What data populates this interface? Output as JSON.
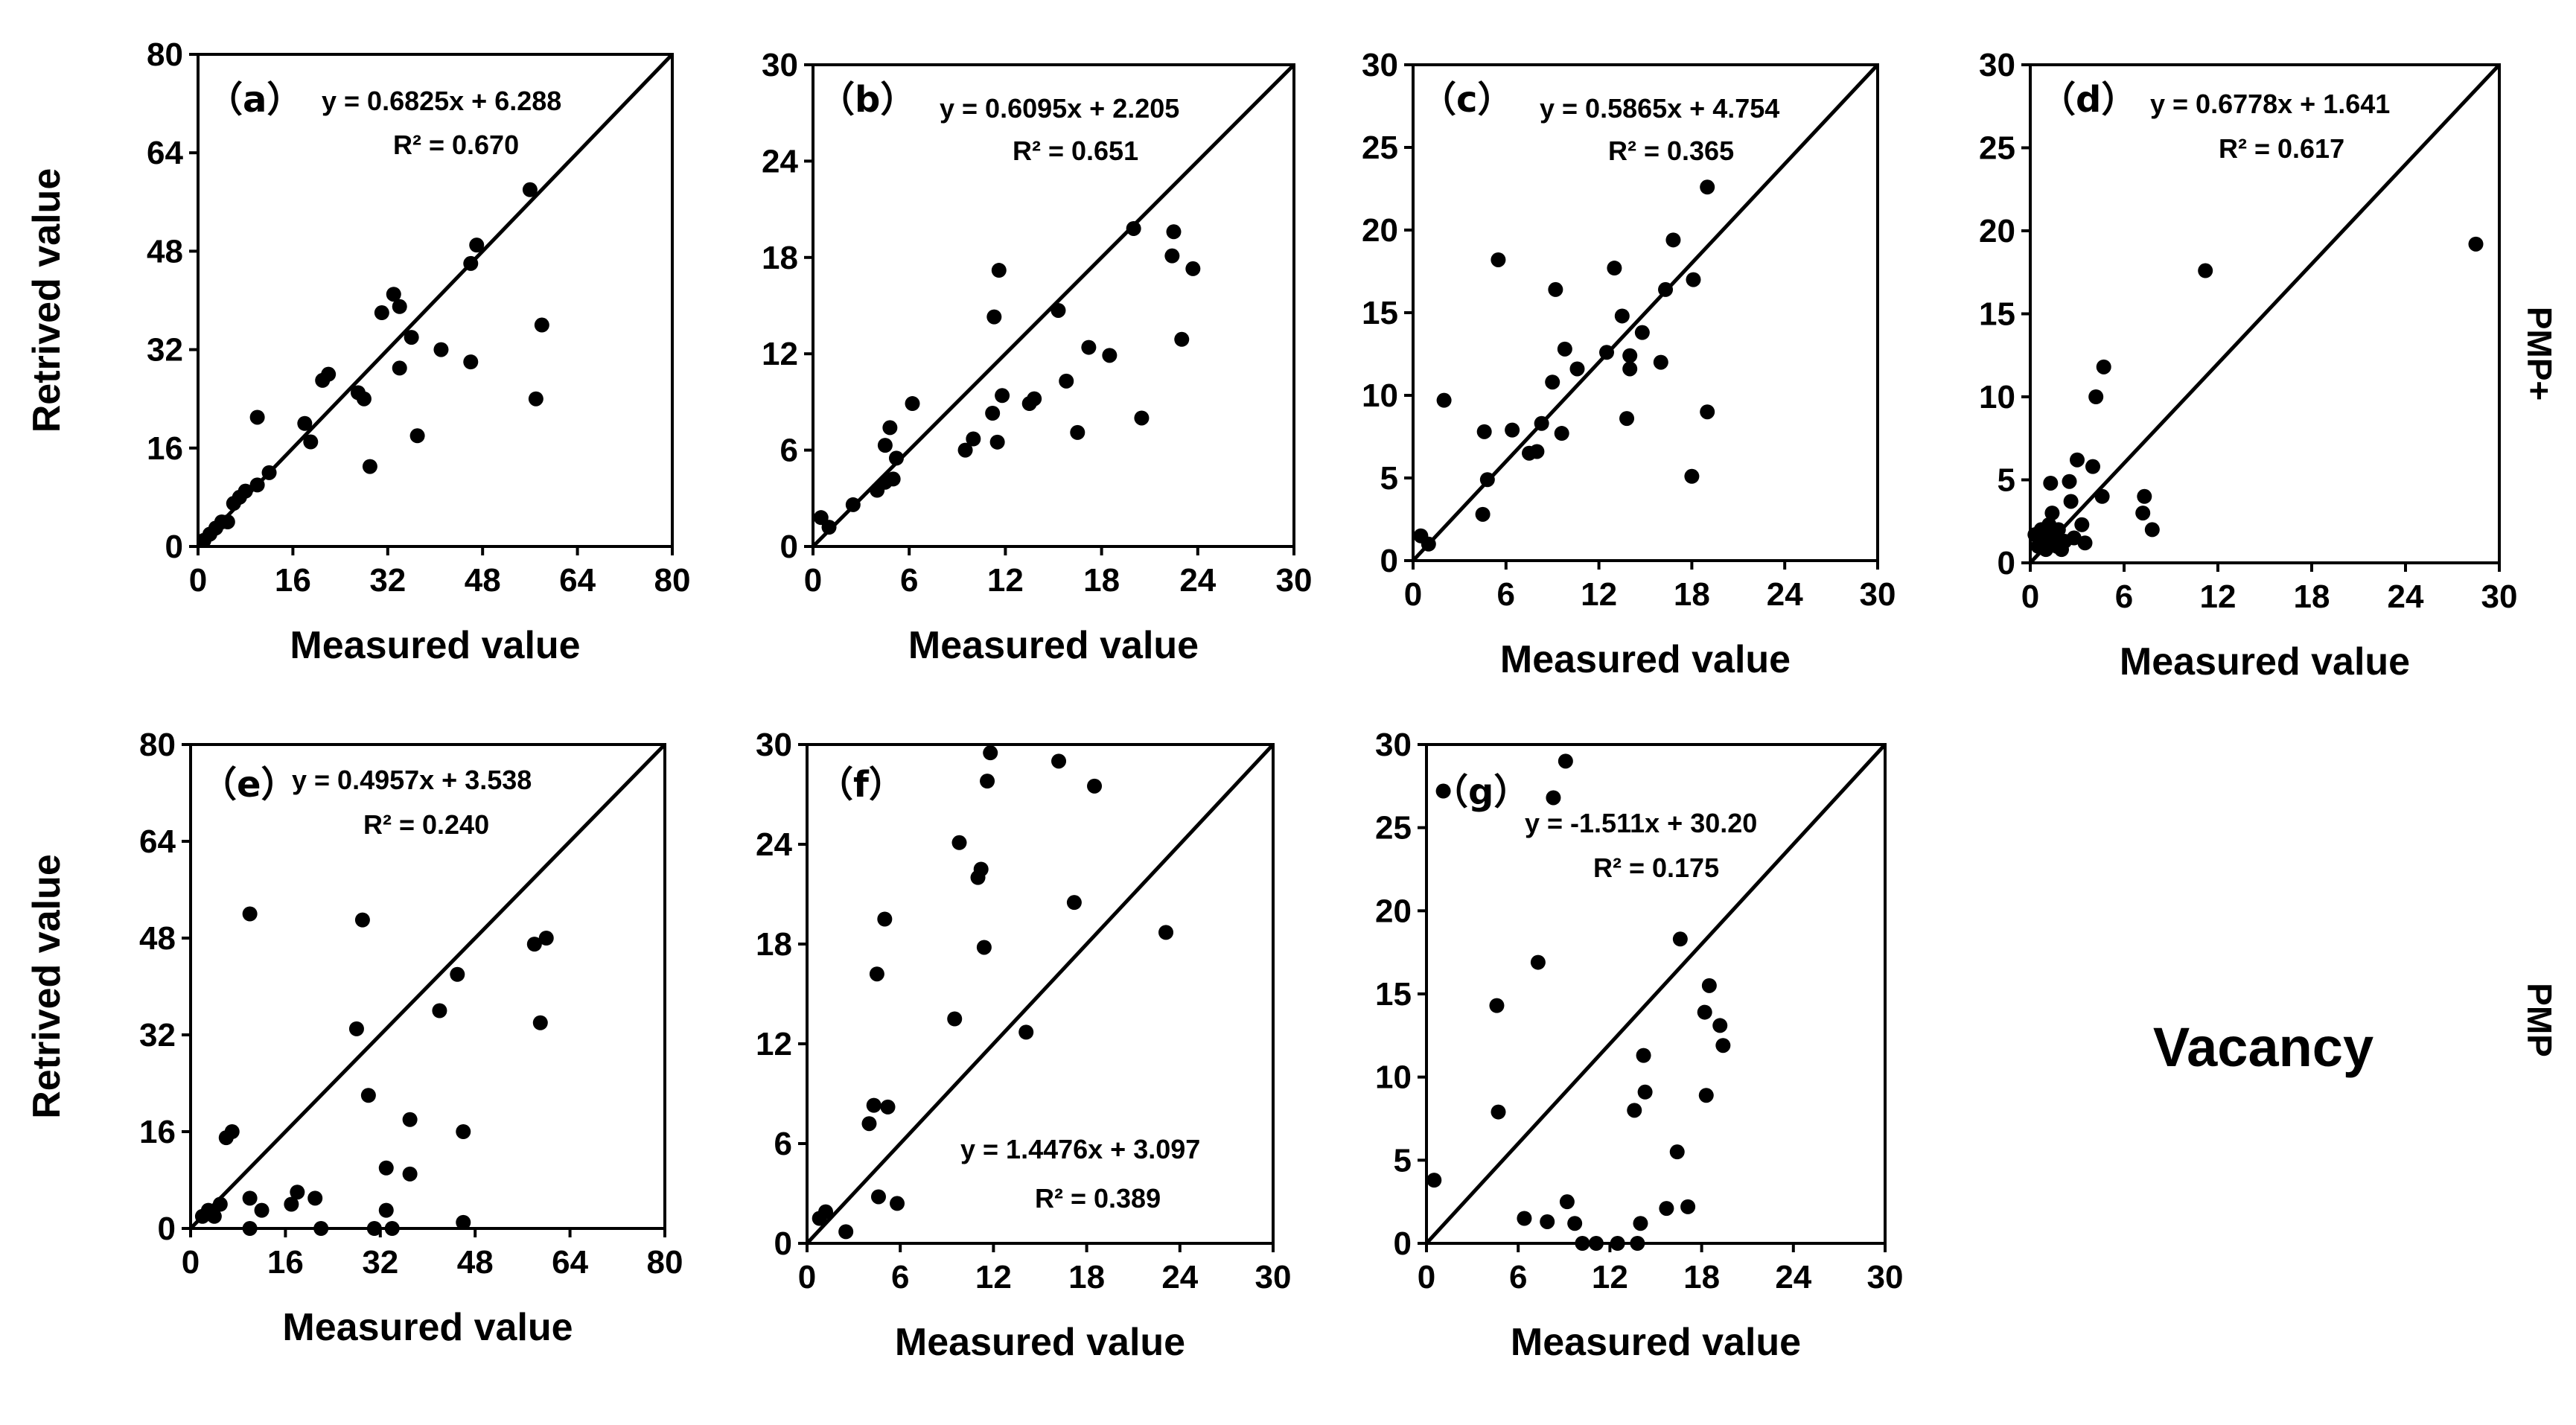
{
  "chart_data": [
    {
      "type": "scatter",
      "label": "（a）",
      "equation": "y = 0.6825x + 6.288",
      "r2": "R² = 0.670",
      "xlabel": "Measured value",
      "ylabel": "Retrived value",
      "xlim": [
        0,
        80
      ],
      "ylim": [
        0,
        80
      ],
      "xticks": [
        0,
        16,
        32,
        48,
        64,
        80
      ],
      "yticks": [
        0,
        16,
        32,
        48,
        64,
        80
      ],
      "diagonal": true,
      "points": [
        [
          1,
          1
        ],
        [
          2,
          2
        ],
        [
          3,
          3
        ],
        [
          4,
          4
        ],
        [
          5,
          4
        ],
        [
          6,
          7
        ],
        [
          7,
          8
        ],
        [
          8,
          9
        ],
        [
          10,
          10
        ],
        [
          10,
          21
        ],
        [
          12,
          12
        ],
        [
          18,
          20
        ],
        [
          19,
          17
        ],
        [
          21,
          27
        ],
        [
          22,
          28
        ],
        [
          27,
          25
        ],
        [
          28,
          24
        ],
        [
          29,
          13
        ],
        [
          31,
          38
        ],
        [
          33,
          41
        ],
        [
          34,
          29
        ],
        [
          34,
          39
        ],
        [
          36,
          34
        ],
        [
          37,
          18
        ],
        [
          41,
          32
        ],
        [
          46,
          46
        ],
        [
          47,
          49
        ],
        [
          46,
          30
        ],
        [
          56,
          58
        ],
        [
          57,
          24
        ],
        [
          58,
          36
        ]
      ]
    },
    {
      "type": "scatter",
      "label": "（b）",
      "equation": "y = 0.6095x + 2.205",
      "r2": "R² = 0.651",
      "xlabel": "Measured value",
      "ylabel": "",
      "xlim": [
        0,
        30
      ],
      "ylim": [
        0,
        30
      ],
      "xticks": [
        0,
        6,
        12,
        18,
        24,
        30
      ],
      "yticks": [
        0,
        6,
        12,
        18,
        24,
        30
      ],
      "diagonal": true,
      "points": [
        [
          0.5,
          1.8
        ],
        [
          1,
          1.2
        ],
        [
          2.5,
          2.6
        ],
        [
          4,
          3.5
        ],
        [
          4.5,
          4
        ],
        [
          4.5,
          6.3
        ],
        [
          4.8,
          7.4
        ],
        [
          5,
          4.2
        ],
        [
          5.2,
          5.5
        ],
        [
          6.2,
          8.9
        ],
        [
          9.5,
          6
        ],
        [
          10,
          6.7
        ],
        [
          11.2,
          8.3
        ],
        [
          11.3,
          14.3
        ],
        [
          11.5,
          6.5
        ],
        [
          11.6,
          17.2
        ],
        [
          11.8,
          9.4
        ],
        [
          13.5,
          8.9
        ],
        [
          13.8,
          9.2
        ],
        [
          15.3,
          14.7
        ],
        [
          15.8,
          10.3
        ],
        [
          16.5,
          7.1
        ],
        [
          17.2,
          12.4
        ],
        [
          18.5,
          11.9
        ],
        [
          20,
          19.8
        ],
        [
          20.5,
          8
        ],
        [
          22.4,
          18.1
        ],
        [
          22.5,
          19.6
        ],
        [
          23,
          12.9
        ],
        [
          23.7,
          17.3
        ]
      ]
    },
    {
      "type": "scatter",
      "label": "（c）",
      "equation": "y = 0.5865x + 4.754",
      "r2": "R² = 0.365",
      "xlabel": "Measured value",
      "ylabel": "",
      "xlim": [
        0,
        30
      ],
      "ylim": [
        0,
        30
      ],
      "xticks": [
        0,
        6,
        12,
        18,
        24,
        30
      ],
      "yticks": [
        0,
        5,
        10,
        15,
        20,
        25,
        30
      ],
      "diagonal": true,
      "points": [
        [
          0.5,
          1.5
        ],
        [
          1,
          1
        ],
        [
          2,
          9.7
        ],
        [
          4.5,
          2.8
        ],
        [
          4.6,
          7.8
        ],
        [
          4.8,
          4.9
        ],
        [
          5.5,
          18.2
        ],
        [
          6.4,
          7.9
        ],
        [
          7.5,
          6.5
        ],
        [
          8,
          6.6
        ],
        [
          8.3,
          8.3
        ],
        [
          9,
          10.8
        ],
        [
          9.2,
          16.4
        ],
        [
          9.6,
          7.7
        ],
        [
          9.8,
          12.8
        ],
        [
          10.6,
          11.6
        ],
        [
          12.5,
          12.6
        ],
        [
          13,
          17.7
        ],
        [
          13.5,
          14.8
        ],
        [
          13.8,
          8.6
        ],
        [
          14,
          12.4
        ],
        [
          14,
          11.6
        ],
        [
          14.8,
          13.8
        ],
        [
          16,
          12
        ],
        [
          16.3,
          16.4
        ],
        [
          16.8,
          19.4
        ],
        [
          18,
          5.1
        ],
        [
          18.1,
          17
        ],
        [
          19,
          22.6
        ],
        [
          19,
          9
        ]
      ]
    },
    {
      "type": "scatter",
      "label": "（d）",
      "equation": "y = 0.6778x + 1.641",
      "r2": "R² = 0.617",
      "xlabel": "Measured value",
      "ylabel": "",
      "xlim": [
        0,
        30
      ],
      "ylim": [
        0,
        30
      ],
      "xticks": [
        0,
        6,
        12,
        18,
        24,
        30
      ],
      "yticks": [
        0,
        5,
        10,
        15,
        20,
        25,
        30
      ],
      "diagonal": true,
      "points": [
        [
          0.3,
          1.7
        ],
        [
          0.5,
          1
        ],
        [
          0.7,
          2
        ],
        [
          0.8,
          1.3
        ],
        [
          1,
          0.8
        ],
        [
          1,
          1.5
        ],
        [
          1.2,
          2.3
        ],
        [
          1.3,
          4.8
        ],
        [
          1.4,
          3
        ],
        [
          1.5,
          1.5
        ],
        [
          1.7,
          1
        ],
        [
          1.8,
          2
        ],
        [
          2,
          0.8
        ],
        [
          2.2,
          1.3
        ],
        [
          2.5,
          4.9
        ],
        [
          2.6,
          3.7
        ],
        [
          2.8,
          1.5
        ],
        [
          3,
          6.2
        ],
        [
          3.3,
          2.3
        ],
        [
          3.5,
          1.2
        ],
        [
          4,
          5.8
        ],
        [
          4.2,
          10
        ],
        [
          4.6,
          4
        ],
        [
          4.7,
          11.8
        ],
        [
          7.2,
          3
        ],
        [
          7.3,
          4
        ],
        [
          7.8,
          2
        ],
        [
          11.2,
          17.6
        ],
        [
          28.5,
          19.2
        ]
      ]
    },
    {
      "type": "scatter",
      "label": "（e）",
      "equation": "y = 0.4957x + 3.538",
      "r2": "R² = 0.240",
      "xlabel": "Measured value",
      "ylabel": "Retrived value",
      "xlim": [
        0,
        80
      ],
      "ylim": [
        0,
        80
      ],
      "xticks": [
        0,
        16,
        32,
        48,
        64,
        80
      ],
      "yticks": [
        0,
        16,
        32,
        48,
        64,
        80
      ],
      "diagonal": true,
      "points": [
        [
          2,
          2
        ],
        [
          3,
          3
        ],
        [
          4,
          2
        ],
        [
          5,
          4
        ],
        [
          6,
          15
        ],
        [
          7,
          16
        ],
        [
          10,
          52
        ],
        [
          10,
          5
        ],
        [
          10,
          0
        ],
        [
          12,
          3
        ],
        [
          17,
          4
        ],
        [
          18,
          6
        ],
        [
          21,
          5
        ],
        [
          22,
          0
        ],
        [
          28,
          33
        ],
        [
          29,
          51
        ],
        [
          30,
          22
        ],
        [
          31,
          0
        ],
        [
          33,
          10
        ],
        [
          33,
          3
        ],
        [
          34,
          0
        ],
        [
          37,
          18
        ],
        [
          37,
          9
        ],
        [
          42,
          36
        ],
        [
          45,
          42
        ],
        [
          46,
          16
        ],
        [
          46,
          1
        ],
        [
          58,
          47
        ],
        [
          59,
          34
        ],
        [
          60,
          48
        ]
      ]
    },
    {
      "type": "scatter",
      "label": "（f）",
      "equation": "y = 1.4476x + 3.097",
      "r2": "R² = 0.389",
      "xlabel": "Measured value",
      "ylabel": "",
      "xlim": [
        0,
        30
      ],
      "ylim": [
        0,
        30
      ],
      "xticks": [
        0,
        6,
        12,
        18,
        24,
        30
      ],
      "yticks": [
        0,
        6,
        12,
        18,
        24,
        30
      ],
      "diagonal": true,
      "points": [
        [
          0.8,
          1.5
        ],
        [
          1.2,
          1.9
        ],
        [
          2.5,
          0.7
        ],
        [
          4,
          7.2
        ],
        [
          4.3,
          8.3
        ],
        [
          4.5,
          16.2
        ],
        [
          4.6,
          2.8
        ],
        [
          5,
          19.5
        ],
        [
          5.2,
          8.2
        ],
        [
          5.8,
          2.4
        ],
        [
          9.5,
          13.5
        ],
        [
          9.8,
          24.1
        ],
        [
          11,
          22
        ],
        [
          11.2,
          22.5
        ],
        [
          11.4,
          17.8
        ],
        [
          11.6,
          27.8
        ],
        [
          11.8,
          29.5
        ],
        [
          14.1,
          12.7
        ],
        [
          16.2,
          29
        ],
        [
          17.2,
          20.5
        ],
        [
          18.5,
          27.5
        ],
        [
          23.1,
          18.7
        ]
      ]
    },
    {
      "type": "scatter",
      "label": "（g）",
      "equation": "y = -1.511x + 30.20",
      "r2": "R² = 0.175",
      "xlabel": "Measured value",
      "ylabel": "",
      "xlim": [
        0,
        30
      ],
      "ylim": [
        0,
        30
      ],
      "xticks": [
        0,
        6,
        12,
        18,
        24,
        30
      ],
      "yticks": [
        0,
        5,
        10,
        15,
        20,
        25,
        30
      ],
      "diagonal": true,
      "points": [
        [
          0.5,
          3.8
        ],
        [
          1.1,
          27.2
        ],
        [
          4.6,
          14.3
        ],
        [
          4.7,
          7.9
        ],
        [
          6.4,
          1.5
        ],
        [
          7.3,
          16.9
        ],
        [
          7.9,
          1.3
        ],
        [
          8.3,
          26.8
        ],
        [
          9.1,
          29
        ],
        [
          9.2,
          2.5
        ],
        [
          9.7,
          1.2
        ],
        [
          10.2,
          0
        ],
        [
          11.1,
          0
        ],
        [
          12.5,
          0
        ],
        [
          13.6,
          8
        ],
        [
          13.8,
          0
        ],
        [
          14,
          1.2
        ],
        [
          14.2,
          11.3
        ],
        [
          14.3,
          9.1
        ],
        [
          15.7,
          2.1
        ],
        [
          16.4,
          5.5
        ],
        [
          16.6,
          18.3
        ],
        [
          17.1,
          2.2
        ],
        [
          18.2,
          13.9
        ],
        [
          18.3,
          8.9
        ],
        [
          18.5,
          15.5
        ],
        [
          19.2,
          13.1
        ],
        [
          19.4,
          11.9
        ]
      ]
    }
  ],
  "side_labels": {
    "pmp_plus": "PMP+",
    "pmp": "PMP",
    "vacancy": "Vacancy"
  }
}
